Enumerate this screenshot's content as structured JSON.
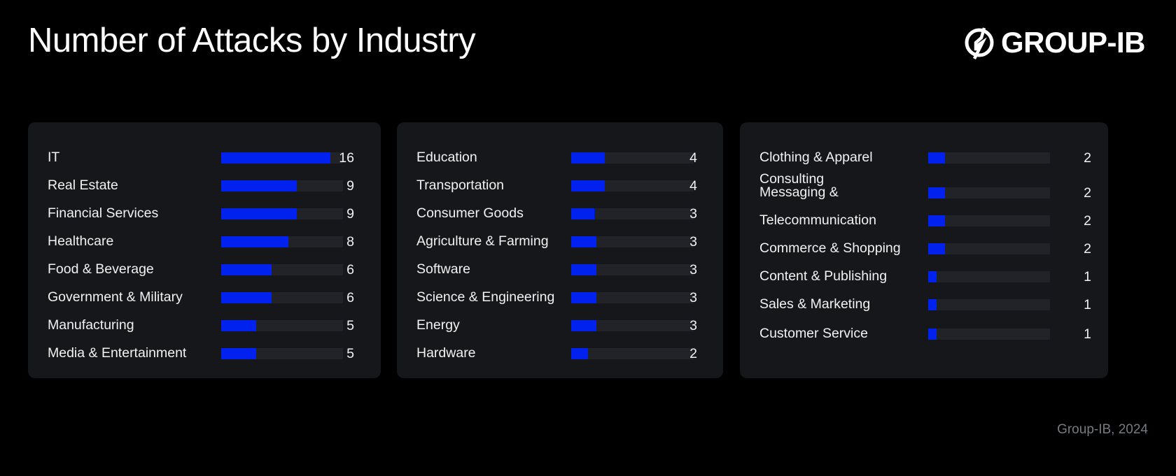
{
  "header": {
    "title": "Number of Attacks by Industry",
    "logo_text": "GROUP-IB"
  },
  "footer": {
    "source": "Group-IB, 2024"
  },
  "colors": {
    "background": "#000000",
    "panel": "#16171b",
    "track": "#222328",
    "bar": "#0021ee",
    "footer_text": "#777a80"
  },
  "panels": [
    {
      "rows": [
        {
          "label": "IT",
          "value": "16",
          "pct": 89.7
        },
        {
          "label": "Real Estate",
          "value": "9",
          "pct": 62.1
        },
        {
          "label": "Financial Services",
          "value": "9",
          "pct": 62.1
        },
        {
          "label": "Healthcare",
          "value": "8",
          "pct": 55.2
        },
        {
          "label": "Food & Beverage",
          "value": "6",
          "pct": 41.4
        },
        {
          "label": "Government & Military",
          "value": "6",
          "pct": 41.4
        },
        {
          "label": "Manufacturing",
          "value": "5",
          "pct": 28.7
        },
        {
          "label": "Media & Entertainment",
          "value": "5",
          "pct": 28.7
        }
      ]
    },
    {
      "rows": [
        {
          "label": "Education",
          "value": "4",
          "pct": 27.6
        },
        {
          "label": "Transportation",
          "value": "4",
          "pct": 27.6
        },
        {
          "label": "Consumer Goods",
          "value": "3",
          "pct": 19.0
        },
        {
          "label": "Agriculture & Farming",
          "value": "3",
          "pct": 20.7
        },
        {
          "label": "Software",
          "value": "3",
          "pct": 20.7
        },
        {
          "label": "Science & Engineering",
          "value": "3",
          "pct": 20.7
        },
        {
          "label": "Energy",
          "value": "3",
          "pct": 20.7
        },
        {
          "label": "Hardware",
          "value": "2",
          "pct": 13.8
        }
      ]
    },
    {
      "rows": [
        {
          "label": "Clothing & Apparel",
          "value": "2",
          "pct": 13.8
        },
        {
          "label": "Consulting\nMessaging &",
          "value": "2",
          "pct": 13.8
        },
        {
          "label": "Telecommunication",
          "value": "2",
          "pct": 13.8
        },
        {
          "label": "Commerce & Shopping",
          "value": "2",
          "pct": 13.8
        },
        {
          "label": "Content & Publishing",
          "value": "1",
          "pct": 6.9
        },
        {
          "label": "Sales & Marketing",
          "value": "1",
          "pct": 6.9
        },
        {
          "label": "Customer Service",
          "value": "1",
          "pct": 6.9
        }
      ]
    }
  ],
  "chart_data": {
    "type": "bar",
    "orientation": "horizontal",
    "title": "Number of Attacks by Industry",
    "xlabel": "",
    "ylabel": "",
    "grid": false,
    "legend": null,
    "categories": [
      "IT",
      "Real Estate",
      "Financial Services",
      "Healthcare",
      "Food & Beverage",
      "Government & Military",
      "Manufacturing",
      "Media & Entertainment",
      "Education",
      "Transportation",
      "Consumer Goods",
      "Agriculture & Farming",
      "Software",
      "Science & Engineering",
      "Energy",
      "Hardware",
      "Clothing & Apparel",
      "Consulting",
      "Messaging & Telecommunication",
      "Commerce & Shopping",
      "Content & Publishing",
      "Sales & Marketing",
      "Customer Service"
    ],
    "values": [
      16,
      9,
      9,
      8,
      6,
      6,
      5,
      5,
      4,
      4,
      3,
      3,
      3,
      3,
      3,
      2,
      2,
      2,
      2,
      2,
      1,
      1,
      1
    ],
    "annotations": [
      "Group-IB, 2024"
    ]
  }
}
